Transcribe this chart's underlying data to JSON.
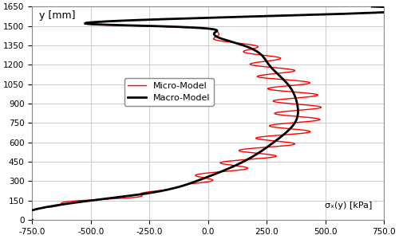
{
  "title": "",
  "xlabel": "σₓ(y) [kPa]",
  "ylabel": "y [mm]",
  "xlim": [
    -750,
    750
  ],
  "ylim": [
    0,
    1650
  ],
  "xticks": [
    -750.0,
    -500.0,
    -250.0,
    0.0,
    250.0,
    500.0,
    750.0
  ],
  "yticks": [
    0,
    150,
    300,
    450,
    600,
    750,
    900,
    1050,
    1200,
    1350,
    1500,
    1650
  ],
  "grid_color": "#cccccc",
  "background_color": "#ffffff",
  "legend_labels": [
    "Micro-Model",
    "Macro-Model"
  ],
  "micro_color": "#ff0000",
  "macro_color": "#000000",
  "micro_linewidth": 1.0,
  "macro_linewidth": 2.0
}
